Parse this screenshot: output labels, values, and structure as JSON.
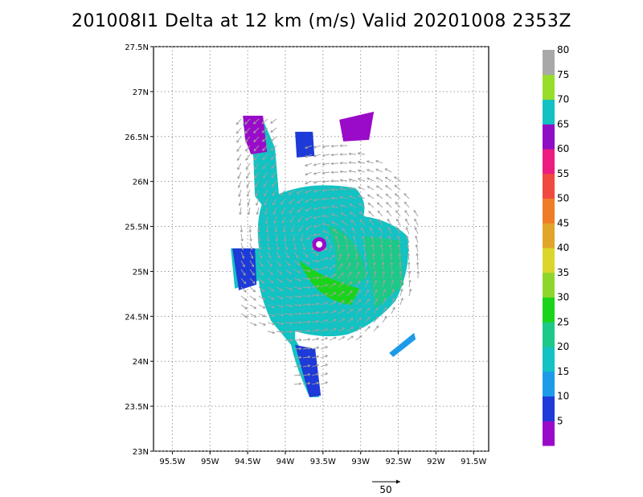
{
  "title": "201008I1 Delta at 12 km (m/s) Valid 20201008 2353Z",
  "map": {
    "lat_labels": [
      "27.5N",
      "27N",
      "26.5N",
      "26N",
      "25.5N",
      "25N",
      "24.5N",
      "24N",
      "23.5N",
      "23N"
    ],
    "lon_labels": [
      "95.5W",
      "95W",
      "94.5W",
      "94W",
      "93.5W",
      "93W",
      "92.5W",
      "92W",
      "91.5W"
    ],
    "lat_range": [
      23.0,
      27.5
    ],
    "lon_range": [
      -95.75,
      -91.3
    ],
    "vector_color": "#a0a0a0"
  },
  "colorbar": {
    "labels": [
      "5",
      "10",
      "15",
      "20",
      "25",
      "30",
      "35",
      "40",
      "45",
      "50",
      "55",
      "60",
      "65",
      "70",
      "75",
      "80"
    ],
    "colors": [
      "#9a0bc9",
      "#1e3ad8",
      "#1d9be8",
      "#13c2c2",
      "#1cc986",
      "#1bd31b",
      "#8fd62c",
      "#dcd52c",
      "#e0a52a",
      "#ef7d28",
      "#f04a40",
      "#ec1c80",
      "#8e0ec6",
      "#12c1c1",
      "#97dd2a",
      "#a8a8a8"
    ]
  },
  "reference_vector": {
    "label": "50"
  },
  "chart_data": {
    "type": "map",
    "title": "201008I1 Delta at 12 km (m/s) Valid 20201008 2353Z",
    "x_axis": {
      "ticks": [
        "95.5W",
        "95W",
        "94.5W",
        "94W",
        "93.5W",
        "93W",
        "92.5W",
        "92W",
        "91.5W"
      ]
    },
    "y_axis": {
      "ticks": [
        "27.5N",
        "27N",
        "26.5N",
        "26N",
        "25.5N",
        "25N",
        "24.5N",
        "24N",
        "23.5N",
        "23N"
      ]
    },
    "storm_center": {
      "lon": -93.55,
      "lat": 25.3
    },
    "field_units": "m/s",
    "colorbar_levels": [
      5,
      10,
      15,
      20,
      25,
      30,
      35,
      40,
      45,
      50,
      55,
      60,
      65,
      70,
      75,
      80
    ],
    "reference_vector_value": 50
  }
}
